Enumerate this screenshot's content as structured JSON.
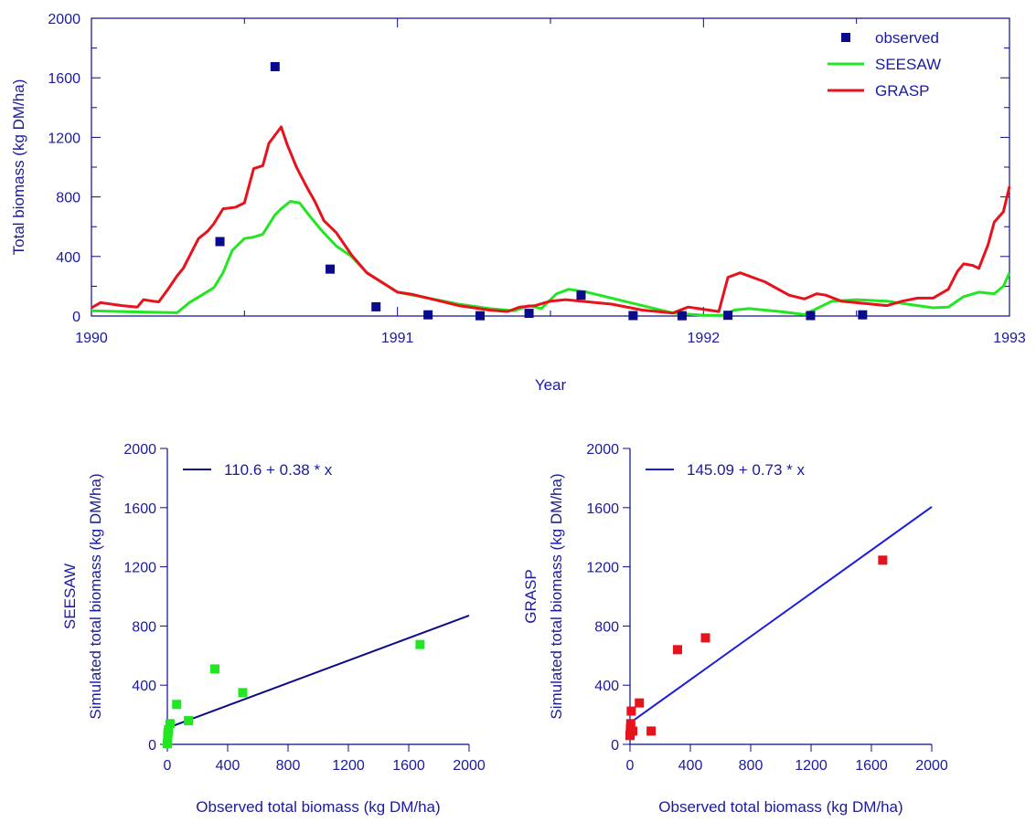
{
  "chart_data": [
    {
      "type": "line",
      "panel": "time-series",
      "xlabel": "Year",
      "ylabel": "Total biomass (kg DM/ha)",
      "xlim": [
        1990,
        1993
      ],
      "ylim": [
        0,
        2000
      ],
      "xticks": [
        1990,
        1991,
        1992,
        1993
      ],
      "xtick_labels": [
        "1990",
        "1991",
        "1992",
        "1993"
      ],
      "yticks": [
        0,
        400,
        800,
        1200,
        1600,
        2000
      ],
      "ytick_labels": [
        "0",
        "400",
        "800",
        "1200",
        "1600",
        "2000"
      ],
      "legend_position": "top-right",
      "series": [
        {
          "name": "observed",
          "kind": "scatter",
          "color": "#0a0a8c",
          "x": [
            1990.42,
            1990.6,
            1990.78,
            1990.93,
            1991.1,
            1991.27,
            1991.43,
            1991.6,
            1991.77,
            1991.93,
            1992.08,
            1992.35,
            1992.52
          ],
          "y": [
            500,
            1675,
            315,
            62,
            8,
            2,
            18,
            140,
            3,
            2,
            5,
            3,
            8
          ]
        },
        {
          "name": "SEESAW",
          "kind": "line",
          "color": "#22e622",
          "x": [
            1990.0,
            1990.1,
            1990.2,
            1990.28,
            1990.32,
            1990.36,
            1990.4,
            1990.43,
            1990.46,
            1990.5,
            1990.53,
            1990.56,
            1990.6,
            1990.62,
            1990.65,
            1990.68,
            1990.71,
            1990.75,
            1990.8,
            1990.85,
            1990.9,
            1991.0,
            1991.1,
            1991.2,
            1991.3,
            1991.38,
            1991.43,
            1991.47,
            1991.52,
            1991.56,
            1991.62,
            1991.7,
            1991.8,
            1991.9,
            1992.0,
            1992.07,
            1992.1,
            1992.15,
            1992.25,
            1992.33,
            1992.37,
            1992.42,
            1992.5,
            1992.6,
            1992.7,
            1992.75,
            1992.8,
            1992.85,
            1992.9,
            1992.95,
            1992.98,
            1993.0
          ],
          "y": [
            35,
            30,
            25,
            22,
            90,
            140,
            190,
            290,
            440,
            520,
            530,
            550,
            680,
            720,
            770,
            760,
            680,
            580,
            470,
            400,
            290,
            160,
            120,
            80,
            50,
            35,
            70,
            50,
            150,
            180,
            160,
            120,
            70,
            20,
            5,
            5,
            40,
            50,
            30,
            10,
            50,
            100,
            110,
            100,
            70,
            55,
            60,
            130,
            160,
            150,
            200,
            290
          ]
        },
        {
          "name": "GRASP",
          "kind": "line",
          "color": "#e8121c",
          "x": [
            1990.0,
            1990.03,
            1990.1,
            1990.15,
            1990.17,
            1990.2,
            1990.22,
            1990.25,
            1990.28,
            1990.3,
            1990.35,
            1990.38,
            1990.4,
            1990.43,
            1990.47,
            1990.5,
            1990.53,
            1990.56,
            1990.58,
            1990.62,
            1990.64,
            1990.67,
            1990.7,
            1990.73,
            1990.76,
            1990.8,
            1990.85,
            1990.9,
            1991.0,
            1991.05,
            1991.1,
            1991.2,
            1991.3,
            1991.36,
            1991.4,
            1991.45,
            1991.5,
            1991.55,
            1991.6,
            1991.7,
            1991.8,
            1991.9,
            1991.95,
            1992.05,
            1992.08,
            1992.12,
            1992.2,
            1992.28,
            1992.33,
            1992.37,
            1992.4,
            1992.45,
            1992.55,
            1992.6,
            1992.65,
            1992.7,
            1992.75,
            1992.8,
            1992.83,
            1992.85,
            1992.88,
            1992.9,
            1992.93,
            1992.95,
            1992.98,
            1993.0
          ],
          "y": [
            55,
            90,
            70,
            60,
            110,
            100,
            95,
            180,
            270,
            320,
            520,
            570,
            620,
            720,
            730,
            760,
            990,
            1010,
            1160,
            1270,
            1150,
            1000,
            880,
            770,
            640,
            560,
            410,
            290,
            160,
            145,
            120,
            70,
            40,
            30,
            60,
            70,
            100,
            110,
            100,
            80,
            40,
            20,
            60,
            30,
            260,
            290,
            230,
            140,
            115,
            150,
            140,
            100,
            80,
            70,
            100,
            120,
            120,
            180,
            300,
            350,
            340,
            320,
            480,
            630,
            700,
            870
          ]
        }
      ]
    },
    {
      "type": "scatter",
      "panel": "seesaw-regression",
      "xlabel": "Observed total biomass (kg DM/ha)",
      "ylabel": "Simulated total biomass (kg DM/ha)",
      "side_label": "SEESAW",
      "xlim": [
        0,
        2000
      ],
      "ylim": [
        0,
        2000
      ],
      "xticks": [
        0,
        400,
        800,
        1200,
        1600,
        2000
      ],
      "xtick_labels": [
        "0",
        "400",
        "800",
        "1200",
        "1600",
        "2000"
      ],
      "yticks": [
        0,
        400,
        800,
        1200,
        1600,
        2000
      ],
      "ytick_labels": [
        "0",
        "400",
        "800",
        "1200",
        "1600",
        "2000"
      ],
      "legend_position": "top-left",
      "regression": {
        "label": "110.6 + 0.38 * x",
        "intercept": 110.6,
        "slope": 0.38,
        "color": "#0a0a8c"
      },
      "points": {
        "color": "#22e622",
        "x": [
          0,
          2,
          3,
          5,
          8,
          18,
          62,
          140,
          315,
          500,
          1675
        ],
        "y": [
          5,
          20,
          60,
          80,
          100,
          140,
          270,
          160,
          510,
          350,
          675
        ]
      }
    },
    {
      "type": "scatter",
      "panel": "grasp-regression",
      "xlabel": "Observed total biomass (kg DM/ha)",
      "ylabel": "Simulated total biomass (kg DM/ha)",
      "side_label": "GRASP",
      "xlim": [
        0,
        2000
      ],
      "ylim": [
        0,
        2000
      ],
      "xticks": [
        0,
        400,
        800,
        1200,
        1600,
        2000
      ],
      "xtick_labels": [
        "0",
        "400",
        "800",
        "1200",
        "1600",
        "2000"
      ],
      "yticks": [
        0,
        400,
        800,
        1200,
        1600,
        2000
      ],
      "ytick_labels": [
        "0",
        "400",
        "800",
        "1200",
        "1600",
        "2000"
      ],
      "legend_position": "top-left",
      "regression": {
        "label": "145.09 + 0.73 * x",
        "intercept": 145.09,
        "slope": 0.73,
        "color": "#1a1ae0"
      },
      "points": {
        "color": "#e8121c",
        "x": [
          0,
          2,
          3,
          5,
          8,
          18,
          62,
          140,
          315,
          500,
          1675
        ],
        "y": [
          60,
          80,
          110,
          140,
          225,
          90,
          280,
          90,
          640,
          720,
          1245
        ]
      }
    }
  ]
}
